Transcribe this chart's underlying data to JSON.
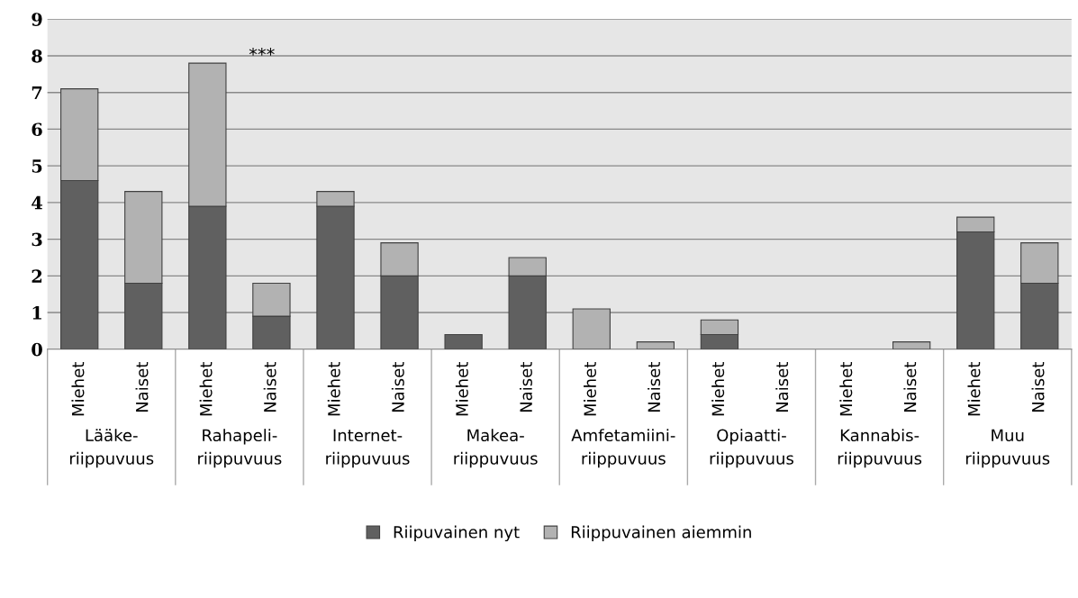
{
  "chart_data": {
    "type": "bar",
    "stacked": true,
    "categories": [
      "Miehet",
      "Naiset",
      "Miehet",
      "Naiset",
      "Miehet",
      "Naiset",
      "Miehet",
      "Naiset",
      "Miehet",
      "Naiset",
      "Miehet",
      "Naiset",
      "Miehet",
      "Naiset",
      "Miehet",
      "Naiset"
    ],
    "series": [
      {
        "name": "Riipuvainen nyt",
        "color": "#606060",
        "values": [
          4.6,
          1.8,
          3.9,
          0.9,
          3.9,
          2.0,
          0.4,
          2.0,
          0,
          0,
          0.4,
          0,
          0,
          0,
          3.2,
          1.8
        ]
      },
      {
        "name": "Riippuvainen aiemmin",
        "color": "#b2b2b2",
        "values": [
          2.5,
          2.5,
          3.9,
          0.9,
          0.4,
          0.9,
          0,
          0.5,
          1.1,
          0.2,
          0.4,
          0,
          0,
          0.2,
          0.4,
          1.1
        ]
      }
    ],
    "annotations": [
      "Lääke-\nriippuvuus",
      "Rahapeli-\nriippuvuus",
      "Internet-\nriippuvuus",
      "Makea-\nriippuvuus",
      "Amfetamiini-\nriippuvuus",
      "Opiaatti-\nriippuvuus",
      "Kannabis-\nriippuvuus",
      "Muu\nriippuvuus",
      "***"
    ],
    "ylim": [
      0,
      9
    ],
    "yticks": [
      0,
      1,
      2,
      3,
      4,
      5,
      6,
      7,
      8,
      9
    ],
    "grid": "y",
    "legend": "bottom"
  }
}
